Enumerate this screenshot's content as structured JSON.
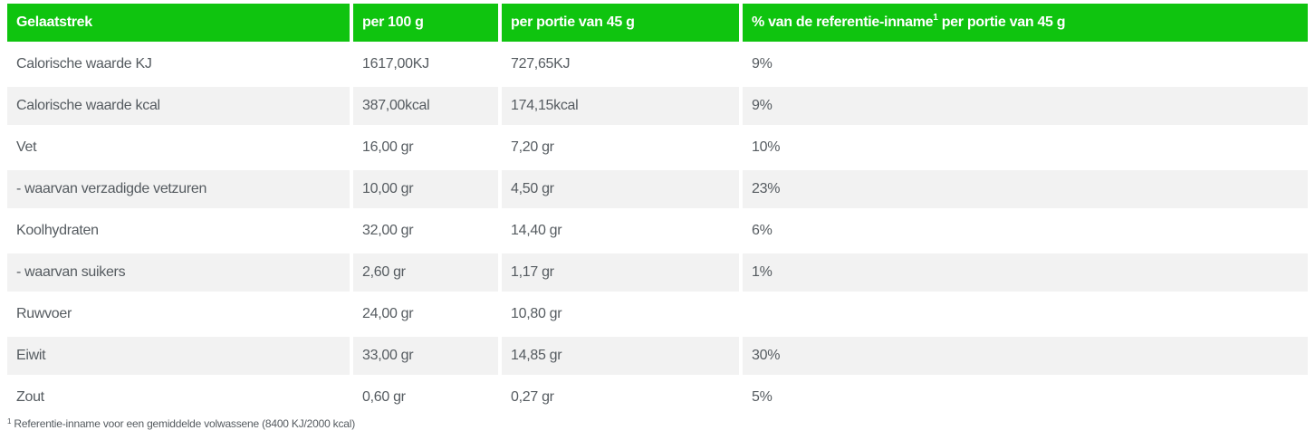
{
  "table": {
    "headers": {
      "col1": "Gelaatstrek",
      "col2": "per 100 g",
      "col3": "per portie van 45 g",
      "col4_main": "% van de referentie-inname",
      "col4_sup": "1",
      "col4_tail": " per portie van 45 g"
    },
    "rows": [
      {
        "name": "Calorische waarde KJ",
        "per100": "1617,00KJ",
        "portion": "727,65KJ",
        "ri": "9%"
      },
      {
        "name": "Calorische waarde kcal",
        "per100": "387,00kcal",
        "portion": "174,15kcal",
        "ri": "9%"
      },
      {
        "name": "Vet",
        "per100": "16,00 gr",
        "portion": "7,20 gr",
        "ri": "10%"
      },
      {
        "name": "- waarvan verzadigde vetzuren",
        "per100": "10,00 gr",
        "portion": "4,50 gr",
        "ri": "23%"
      },
      {
        "name": "Koolhydraten",
        "per100": "32,00 gr",
        "portion": "14,40 gr",
        "ri": "6%"
      },
      {
        "name": "- waarvan suikers",
        "per100": "2,60 gr",
        "portion": "1,17 gr",
        "ri": "1%"
      },
      {
        "name": "Ruwvoer",
        "per100": "24,00 gr",
        "portion": "10,80 gr",
        "ri": ""
      },
      {
        "name": "Eiwit",
        "per100": "33,00 gr",
        "portion": "14,85 gr",
        "ri": "30%"
      },
      {
        "name": "Zout",
        "per100": "0,60 gr",
        "portion": "0,27 gr",
        "ri": "5%"
      }
    ]
  },
  "footnote": {
    "sup": "1",
    "text": " Referentie-inname voor een gemiddelde volwassene (8400 KJ/2000 kcal)"
  },
  "colors": {
    "header_bg": "#0fc40f",
    "header_text": "#ffffff",
    "row_alt_bg": "#f2f2f2",
    "body_text": "#555b60"
  }
}
